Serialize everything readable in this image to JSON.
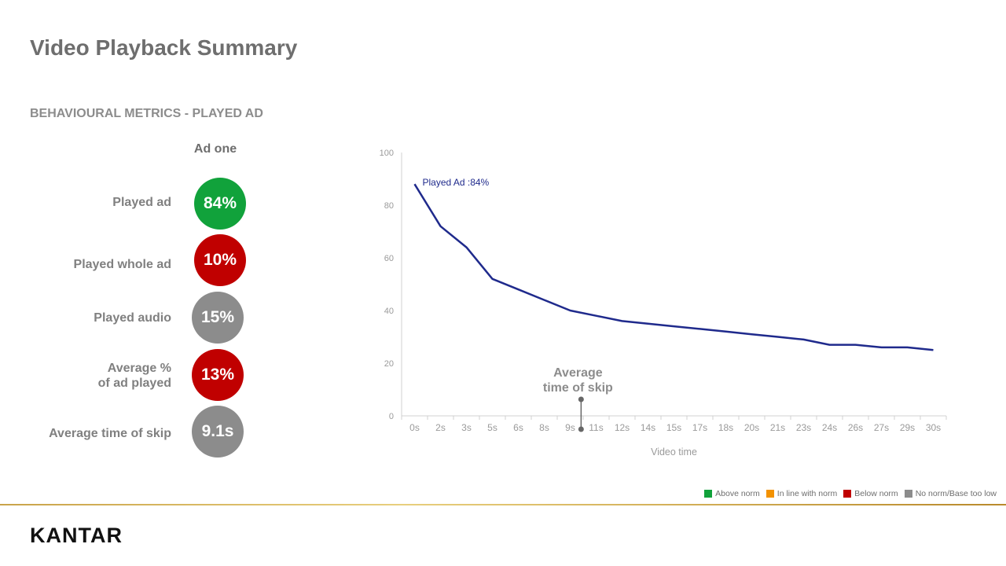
{
  "header": {
    "title": "Video Playback Summary",
    "subtitle": "BEHAVIOURAL METRICS - PLAYED AD",
    "column_head": "Ad one"
  },
  "metrics": [
    {
      "label": "Played ad",
      "value": "84%",
      "status": "above",
      "color": "#11a23b"
    },
    {
      "label": "Played whole ad",
      "value": "10%",
      "status": "below",
      "color": "#c00000"
    },
    {
      "label": "Played audio",
      "value": "15%",
      "status": "none",
      "color": "#8c8c8c"
    },
    {
      "label": "Average %\nof ad played",
      "value": "13%",
      "status": "below",
      "color": "#c00000"
    },
    {
      "label": "Average time of skip",
      "value": "9.1s",
      "status": "none",
      "color": "#8c8c8c"
    }
  ],
  "chart_data": {
    "type": "line",
    "xlabel": "Video time",
    "ylabel": "",
    "ylim": [
      0,
      100
    ],
    "yticks": [
      0,
      20,
      40,
      60,
      80,
      100
    ],
    "categories": [
      "0s",
      "2s",
      "3s",
      "5s",
      "6s",
      "8s",
      "9s",
      "11s",
      "12s",
      "14s",
      "15s",
      "17s",
      "18s",
      "20s",
      "21s",
      "23s",
      "24s",
      "26s",
      "27s",
      "29s",
      "30s"
    ],
    "series": [
      {
        "name": "Played Ad :84%",
        "color": "#1f2a8c",
        "values": [
          88,
          72,
          64,
          52,
          48,
          44,
          40,
          38,
          36,
          35,
          34,
          33,
          32,
          31,
          30,
          29,
          27,
          27,
          26,
          26,
          25
        ]
      }
    ],
    "annotation": {
      "text": "Average\ntime of skip",
      "x": 9.1
    },
    "grid": false
  },
  "legend": [
    {
      "label": "Above norm",
      "color": "#11a23b"
    },
    {
      "label": "In line with norm",
      "color": "#f39200"
    },
    {
      "label": "Below norm",
      "color": "#c00000"
    },
    {
      "label": "No norm/Base too low",
      "color": "#8c8c8c"
    }
  ],
  "brand": {
    "logo_text": "KANTAR"
  }
}
